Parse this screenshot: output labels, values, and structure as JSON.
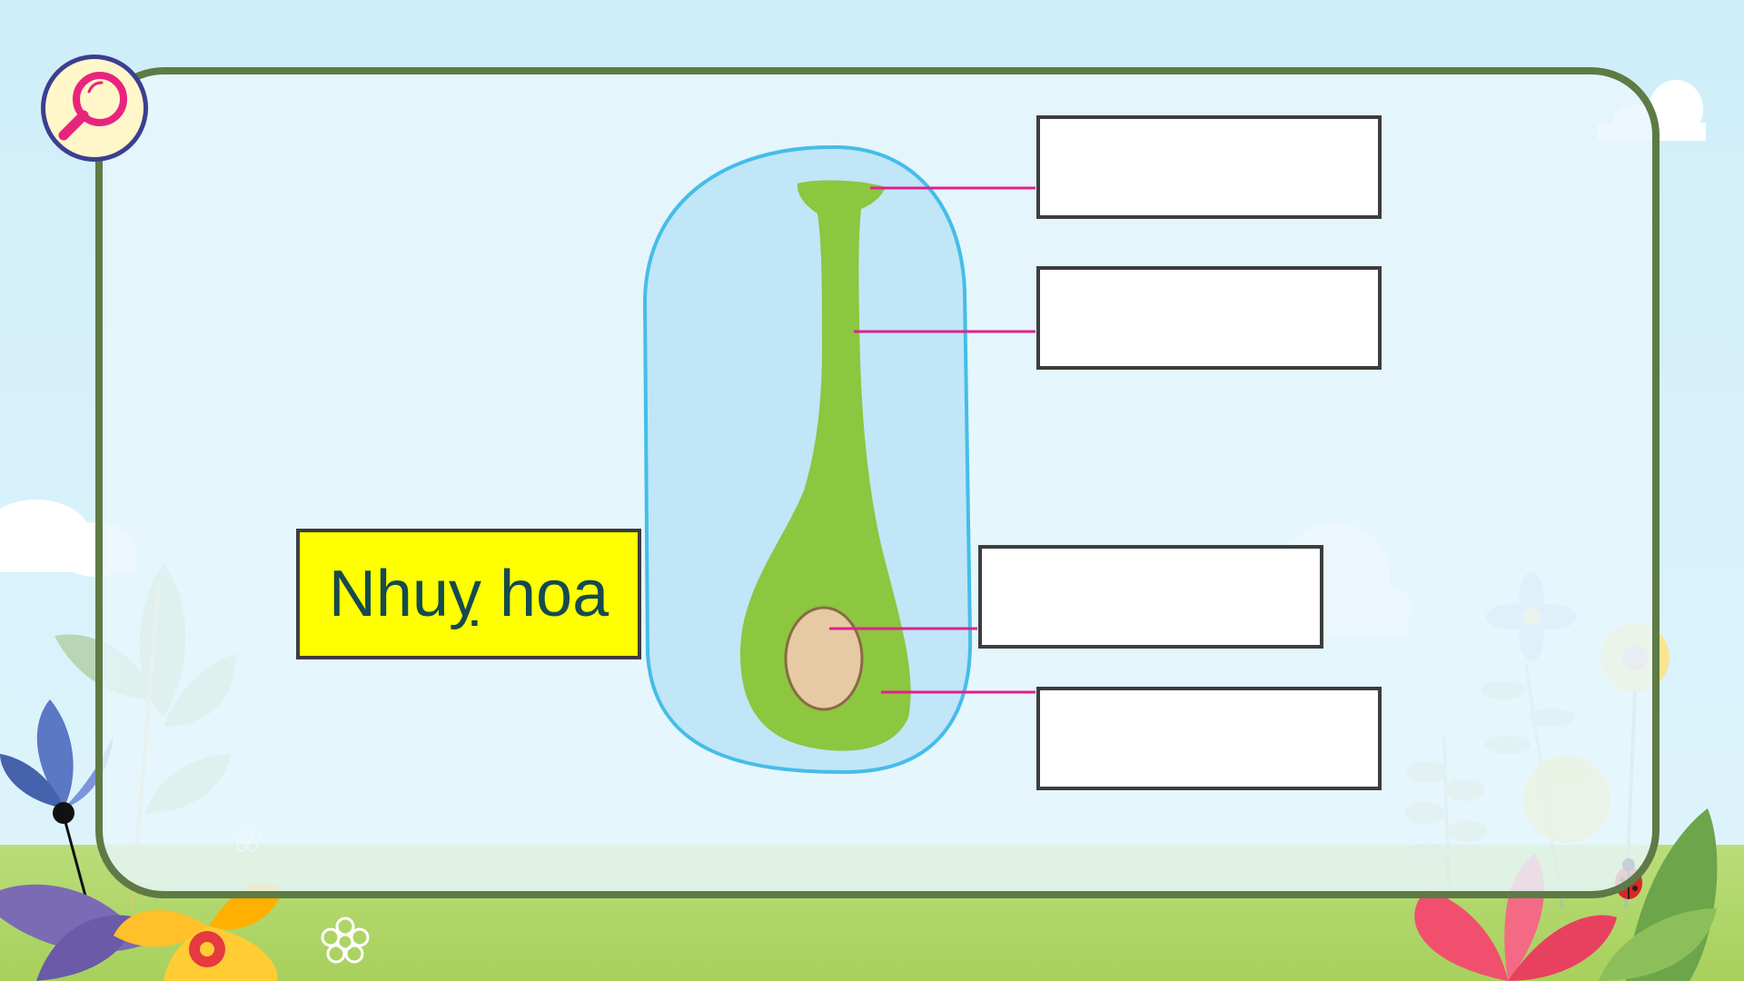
{
  "title": {
    "text": "Nhuỵ hoa"
  },
  "label_boxes": [
    {
      "text": ""
    },
    {
      "text": ""
    },
    {
      "text": ""
    },
    {
      "text": ""
    }
  ],
  "colors": {
    "pistil": "#8dc63f",
    "ovule": "#e6caa4",
    "background_blob": "#c0e6f8",
    "leader_line": "#e0208c",
    "frame": "#5e7a45",
    "title_fill": "#ffff00"
  },
  "icons": [
    "magnifier-icon"
  ]
}
